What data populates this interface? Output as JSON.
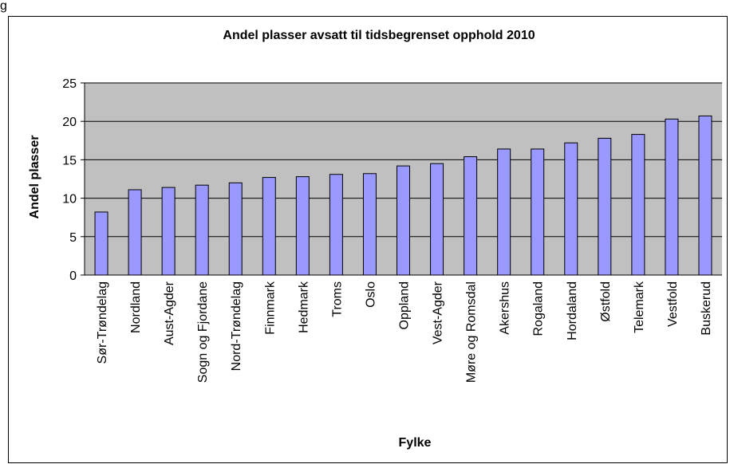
{
  "caption": "g",
  "chart_data": {
    "type": "bar",
    "title": "Andel plasser avsatt til tidsbegrenset opphold 2010",
    "x_label": "Fylke",
    "y_label": "Andel plasser",
    "categories": [
      "Sør-Trøndelag",
      "Nordland",
      "Aust-Agder",
      "Sogn og Fjordane",
      "Nord-Trøndelag",
      "Finnmark",
      "Hedmark",
      "Troms",
      "Oslo",
      "Oppland",
      "Vest-Agder",
      "Møre og Romsdal",
      "Akershus",
      "Rogaland",
      "Hordaland",
      "Østfold",
      "Telemark",
      "Vestfold",
      "Buskerud"
    ],
    "values": [
      8.2,
      11.1,
      11.4,
      11.7,
      12.0,
      12.7,
      12.8,
      13.1,
      13.2,
      14.2,
      14.5,
      15.4,
      16.4,
      16.4,
      17.2,
      17.8,
      18.3,
      20.3,
      20.7
    ],
    "color": "#9999ff",
    "plot_background": "#c0c0c0",
    "ylim": [
      0,
      25
    ],
    "yticks": [
      0,
      5,
      10,
      15,
      20,
      25
    ],
    "grid": true
  }
}
